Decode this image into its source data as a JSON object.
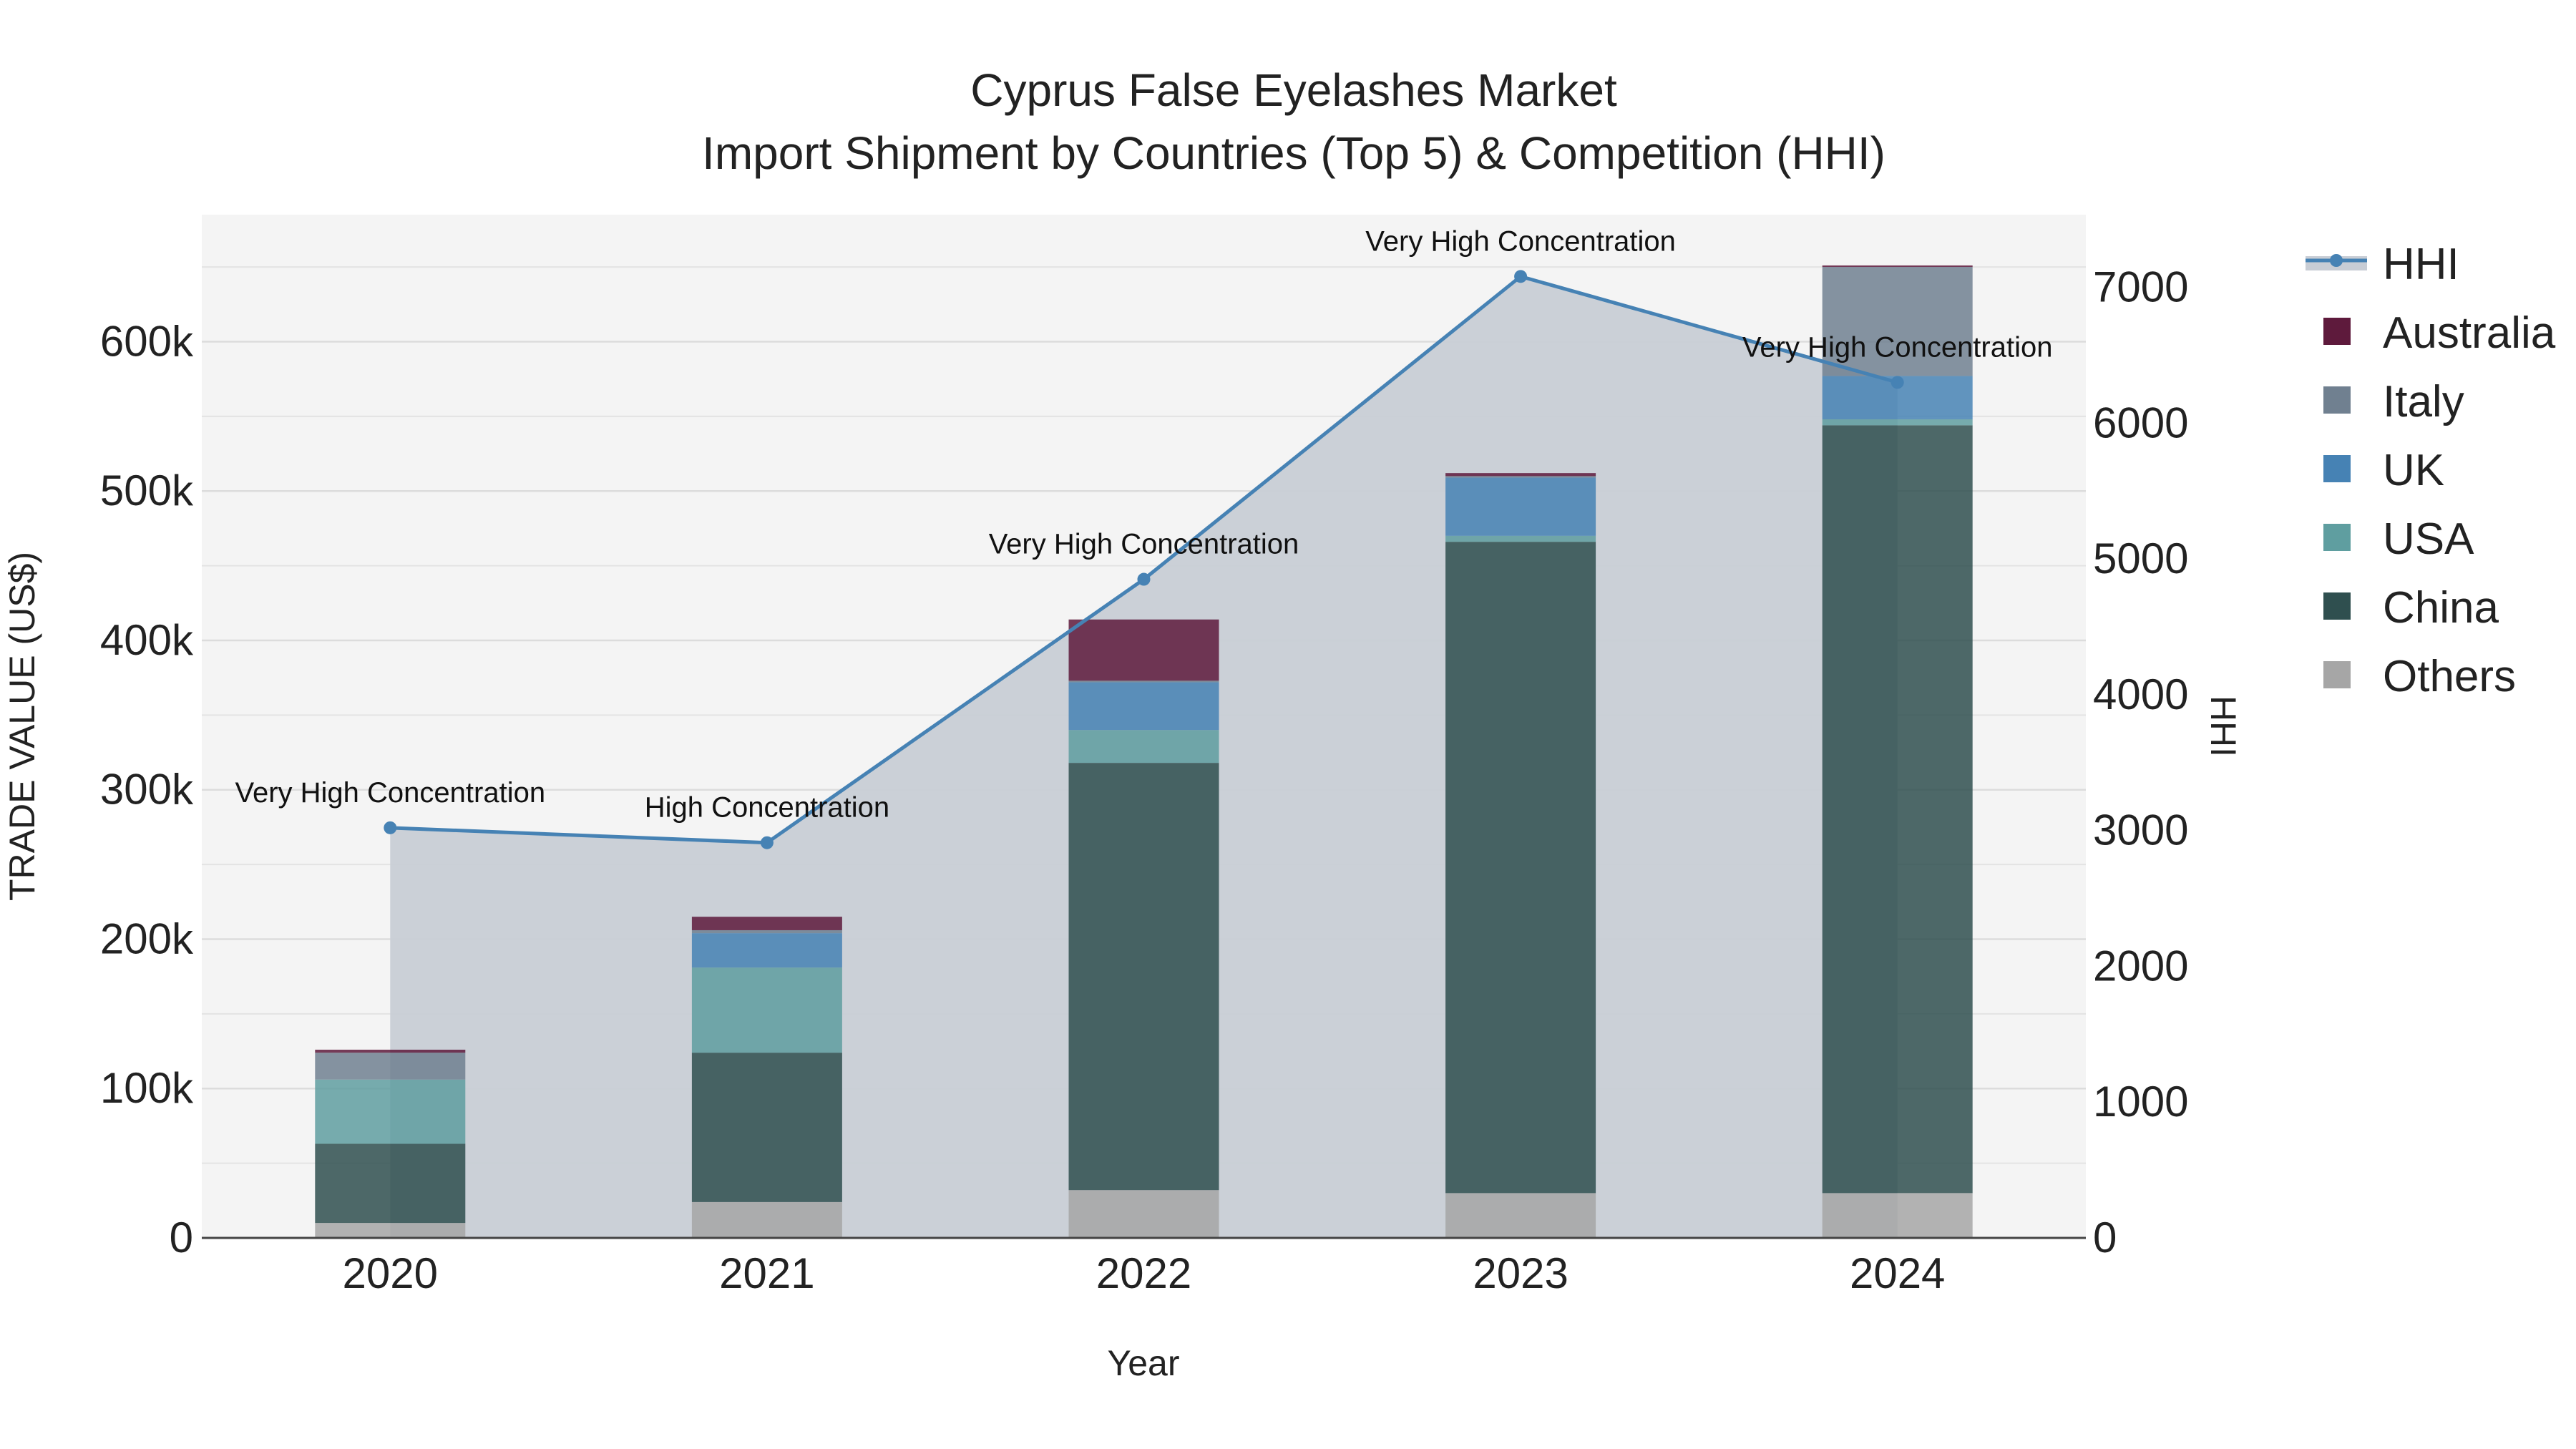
{
  "chart_data": {
    "type": "bar",
    "title": "Cyprus False Eyelashes Market",
    "subtitle": "Import Shipment by Countries (Top 5) & Competition (HHI)",
    "xlabel": "Year",
    "ylabel": "TRADE VALUE (US$)",
    "y2label": "HHI",
    "categories": [
      "2020",
      "2021",
      "2022",
      "2023",
      "2024"
    ],
    "ylim": [
      0,
      685000
    ],
    "y2lim": [
      0,
      7535
    ],
    "yticks": [
      0,
      100000,
      200000,
      300000,
      400000,
      500000,
      600000
    ],
    "ytick_labels": [
      "0",
      "100k",
      "200k",
      "300k",
      "400k",
      "500k",
      "600k"
    ],
    "y2ticks": [
      0,
      1000,
      2000,
      3000,
      4000,
      5000,
      6000,
      7000
    ],
    "y2tick_labels": [
      "0",
      "1000",
      "2000",
      "3000",
      "4000",
      "5000",
      "6000",
      "7000"
    ],
    "series": [
      {
        "name": "Others",
        "color": "#a6a6a6",
        "values": [
          10000,
          24000,
          32000,
          30000,
          30000
        ]
      },
      {
        "name": "China",
        "color": "#2f4f4f",
        "values": [
          53000,
          100000,
          286000,
          436000,
          514000
        ]
      },
      {
        "name": "USA",
        "color": "#5f9ea0",
        "values": [
          43000,
          57000,
          22000,
          4000,
          4000
        ]
      },
      {
        "name": "UK",
        "color": "#4682b4",
        "values": [
          0,
          23000,
          32000,
          39000,
          29000
        ]
      },
      {
        "name": "Italy",
        "color": "#708090",
        "values": [
          18000,
          2000,
          1000,
          1000,
          73000
        ]
      },
      {
        "name": "Australia",
        "color": "#5e1a3c",
        "values": [
          2000,
          9000,
          41000,
          2000,
          1000
        ]
      }
    ],
    "hhi": {
      "name": "HHI",
      "color": "#4682b4",
      "fill": "#c8cdd5",
      "values": [
        3020,
        2910,
        4850,
        7080,
        6300
      ],
      "labels": [
        "Very High Concentration",
        "High Concentration",
        "Very High Concentration",
        "Very High Concentration",
        "Very High Concentration"
      ]
    },
    "legend": [
      "HHI",
      "Australia",
      "Italy",
      "UK",
      "USA",
      "China",
      "Others"
    ],
    "legend_position": "right",
    "grid": true
  }
}
